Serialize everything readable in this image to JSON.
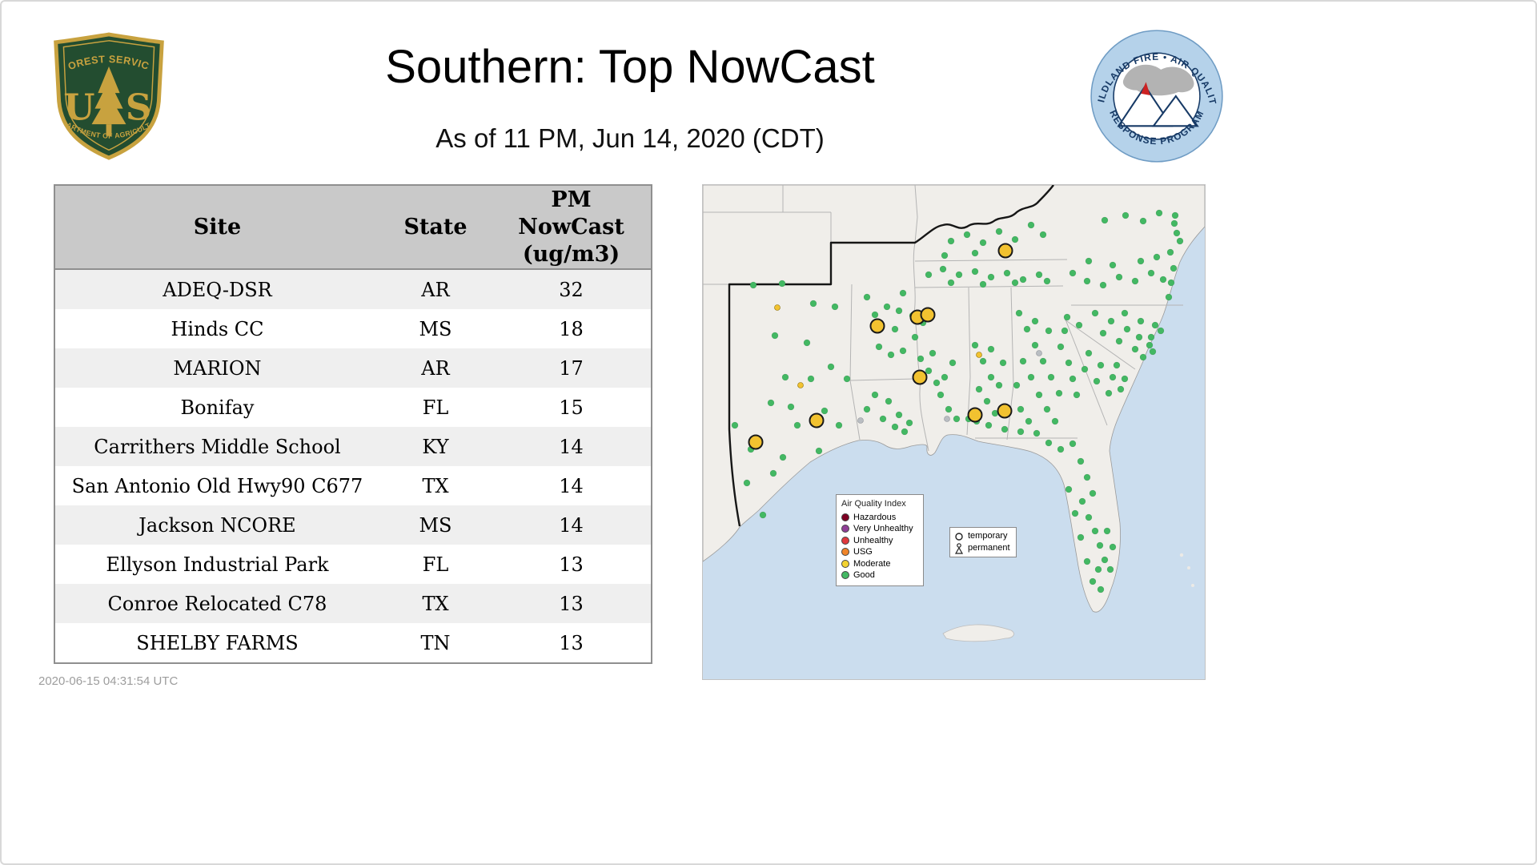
{
  "header": {
    "title": "Southern: Top NowCast",
    "subtitle": "As of 11 PM, Jun 14, 2020 (CDT)",
    "fs_logo": {
      "arc_top": "FOREST SERVICE",
      "letter_left": "U",
      "letter_right": "S",
      "arc_bottom": "DEPARTMENT OF AGRICULTURE"
    },
    "wf_logo": {
      "arc_top": "WILDLAND FIRE • AIR QUALITY",
      "arc_bottom": "RESPONSE PROGRAM"
    }
  },
  "table": {
    "columns": [
      "Site",
      "State",
      "PM\nNowCast\n(ug/m3)"
    ],
    "rows": [
      {
        "site": "ADEQ-DSR",
        "state": "AR",
        "value": "32"
      },
      {
        "site": "Hinds CC",
        "state": "MS",
        "value": "18"
      },
      {
        "site": "MARION",
        "state": "AR",
        "value": "17"
      },
      {
        "site": "Bonifay",
        "state": "FL",
        "value": "15"
      },
      {
        "site": "Carrithers Middle School",
        "state": "KY",
        "value": "14"
      },
      {
        "site": "San Antonio Old Hwy90 C677",
        "state": "TX",
        "value": "14"
      },
      {
        "site": "Jackson NCORE",
        "state": "MS",
        "value": "14"
      },
      {
        "site": "Ellyson Industrial Park",
        "state": "FL",
        "value": "13"
      },
      {
        "site": "Conroe Relocated C78",
        "state": "TX",
        "value": "13"
      },
      {
        "site": "SHELBY FARMS",
        "state": "TN",
        "value": "13"
      }
    ]
  },
  "footer": {
    "timestamp": "2020-06-15 04:31:54 UTC"
  },
  "map": {
    "legend": {
      "title": "Air Quality Index",
      "items": [
        {
          "label": "Hazardous",
          "color": "#7e0023"
        },
        {
          "label": "Very Unhealthy",
          "color": "#8f3f97"
        },
        {
          "label": "Unhealthy",
          "color": "#e0393e"
        },
        {
          "label": "USG",
          "color": "#f0852a"
        },
        {
          "label": "Moderate",
          "color": "#f2d230"
        },
        {
          "label": "Good",
          "color": "#43b863"
        }
      ]
    },
    "marker_legend": {
      "temporary": "temporary",
      "permanent": "permanent"
    },
    "colors": {
      "good": "#43b863",
      "moderate": "#f2c230",
      "moderate_ring": "#1a1a1a",
      "no_data": "#b9bdc2"
    },
    "monitors": {
      "good": [
        [
          63,
          125
        ],
        [
          99,
          123
        ],
        [
          138,
          148
        ],
        [
          165,
          152
        ],
        [
          90,
          188
        ],
        [
          130,
          197
        ],
        [
          103,
          240
        ],
        [
          85,
          272
        ],
        [
          110,
          277
        ],
        [
          135,
          242
        ],
        [
          160,
          227
        ],
        [
          180,
          242
        ],
        [
          145,
          332
        ],
        [
          55,
          372
        ],
        [
          75,
          412
        ],
        [
          118,
          300
        ],
        [
          152,
          282
        ],
        [
          170,
          300
        ],
        [
          60,
          330
        ],
        [
          88,
          360
        ],
        [
          100,
          340
        ],
        [
          40,
          300
        ],
        [
          205,
          280
        ],
        [
          225,
          292
        ],
        [
          245,
          287
        ],
        [
          258,
          297
        ],
        [
          240,
          302
        ],
        [
          215,
          262
        ],
        [
          232,
          270
        ],
        [
          252,
          308
        ],
        [
          215,
          162
        ],
        [
          230,
          152
        ],
        [
          245,
          157
        ],
        [
          262,
          163
        ],
        [
          220,
          202
        ],
        [
          235,
          212
        ],
        [
          250,
          207
        ],
        [
          275,
          172
        ],
        [
          265,
          190
        ],
        [
          240,
          180
        ],
        [
          205,
          140
        ],
        [
          250,
          135
        ],
        [
          272,
          217
        ],
        [
          282,
          232
        ],
        [
          292,
          247
        ],
        [
          297,
          262
        ],
        [
          302,
          240
        ],
        [
          312,
          222
        ],
        [
          307,
          280
        ],
        [
          317,
          292
        ],
        [
          287,
          210
        ],
        [
          340,
          200
        ],
        [
          350,
          220
        ],
        [
          360,
          240
        ],
        [
          345,
          255
        ],
        [
          355,
          270
        ],
        [
          365,
          285
        ],
        [
          370,
          250
        ],
        [
          375,
          222
        ],
        [
          360,
          205
        ],
        [
          332,
          292
        ],
        [
          300,
          105
        ],
        [
          320,
          112
        ],
        [
          340,
          108
        ],
        [
          360,
          115
        ],
        [
          380,
          110
        ],
        [
          400,
          118
        ],
        [
          420,
          112
        ],
        [
          310,
          122
        ],
        [
          350,
          124
        ],
        [
          390,
          122
        ],
        [
          430,
          120
        ],
        [
          282,
          112
        ],
        [
          310,
          70
        ],
        [
          330,
          62
        ],
        [
          350,
          72
        ],
        [
          370,
          58
        ],
        [
          390,
          68
        ],
        [
          410,
          50
        ],
        [
          425,
          62
        ],
        [
          340,
          85
        ],
        [
          380,
          85
        ],
        [
          302,
          88
        ],
        [
          395,
          160
        ],
        [
          405,
          180
        ],
        [
          415,
          200
        ],
        [
          425,
          220
        ],
        [
          435,
          240
        ],
        [
          445,
          260
        ],
        [
          400,
          220
        ],
        [
          410,
          240
        ],
        [
          420,
          262
        ],
        [
          430,
          280
        ],
        [
          440,
          295
        ],
        [
          415,
          170
        ],
        [
          432,
          182
        ],
        [
          447,
          202
        ],
        [
          457,
          222
        ],
        [
          452,
          182
        ],
        [
          462,
          242
        ],
        [
          467,
          262
        ],
        [
          392,
          250
        ],
        [
          397,
          280
        ],
        [
          407,
          295
        ],
        [
          342,
          295
        ],
        [
          357,
          300
        ],
        [
          377,
          305
        ],
        [
          397,
          308
        ],
        [
          417,
          310
        ],
        [
          432,
          322
        ],
        [
          447,
          330
        ],
        [
          462,
          323
        ],
        [
          472,
          345
        ],
        [
          480,
          365
        ],
        [
          487,
          385
        ],
        [
          474,
          395
        ],
        [
          482,
          415
        ],
        [
          490,
          432
        ],
        [
          496,
          450
        ],
        [
          502,
          468
        ],
        [
          494,
          480
        ],
        [
          487,
          495
        ],
        [
          497,
          505
        ],
        [
          480,
          470
        ],
        [
          472,
          440
        ],
        [
          465,
          410
        ],
        [
          457,
          380
        ],
        [
          505,
          432
        ],
        [
          512,
          452
        ],
        [
          509,
          480
        ],
        [
          482,
          210
        ],
        [
          497,
          225
        ],
        [
          512,
          240
        ],
        [
          522,
          255
        ],
        [
          507,
          260
        ],
        [
          492,
          245
        ],
        [
          477,
          230
        ],
        [
          517,
          225
        ],
        [
          527,
          242
        ],
        [
          490,
          160
        ],
        [
          510,
          170
        ],
        [
          530,
          180
        ],
        [
          545,
          190
        ],
        [
          558,
          200
        ],
        [
          562,
          208
        ],
        [
          500,
          185
        ],
        [
          520,
          195
        ],
        [
          540,
          205
        ],
        [
          550,
          215
        ],
        [
          560,
          190
        ],
        [
          572,
          182
        ],
        [
          470,
          175
        ],
        [
          455,
          165
        ],
        [
          527,
          160
        ],
        [
          547,
          170
        ],
        [
          565,
          175
        ],
        [
          480,
          120
        ],
        [
          500,
          125
        ],
        [
          520,
          115
        ],
        [
          540,
          120
        ],
        [
          560,
          110
        ],
        [
          575,
          118
        ],
        [
          588,
          104
        ],
        [
          547,
          95
        ],
        [
          567,
          90
        ],
        [
          584,
          84
        ],
        [
          585,
          122
        ],
        [
          582,
          140
        ],
        [
          482,
          95
        ],
        [
          512,
          100
        ],
        [
          462,
          110
        ],
        [
          592,
          60
        ],
        [
          589,
          48
        ],
        [
          570,
          35
        ],
        [
          590,
          38
        ],
        [
          596,
          70
        ],
        [
          502,
          44
        ],
        [
          528,
          38
        ],
        [
          550,
          45
        ]
      ],
      "moderate_large": [
        [
          378,
          82
        ],
        [
          268,
          165
        ],
        [
          281,
          162
        ],
        [
          218,
          176
        ],
        [
          271,
          240
        ],
        [
          340,
          287
        ],
        [
          377,
          282
        ],
        [
          142,
          294
        ],
        [
          66,
          321
        ]
      ],
      "moderate_small": [
        [
          93,
          153
        ],
        [
          122,
          250
        ],
        [
          345,
          212
        ]
      ],
      "no_data": [
        [
          197,
          294
        ],
        [
          305,
          292
        ],
        [
          420,
          210
        ]
      ]
    }
  }
}
